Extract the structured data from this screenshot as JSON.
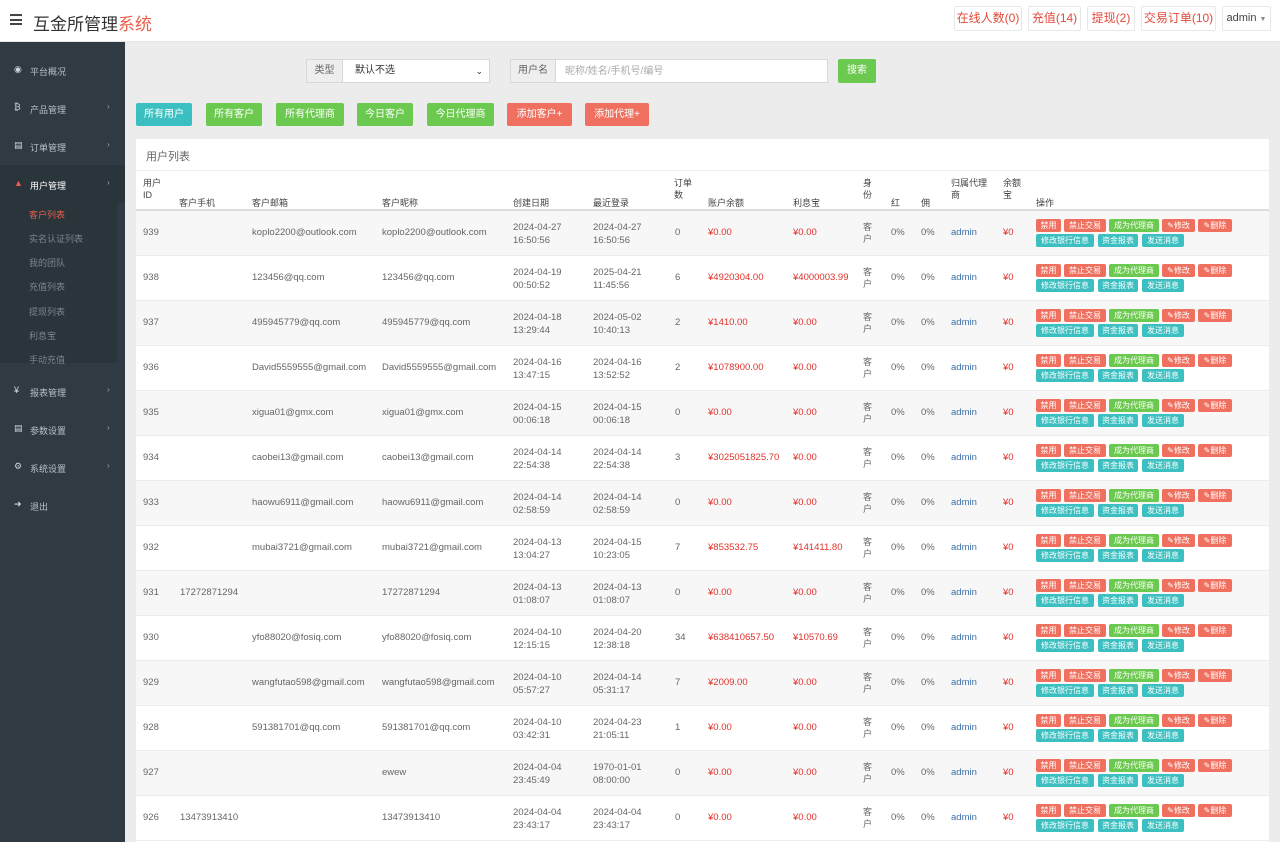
{
  "header": {
    "brand_main": "互金所管理",
    "brand_hl": "系统",
    "buttons": [
      "在线人数(0)",
      "充值(14)",
      "提现(2)",
      "交易订单(10)"
    ],
    "admin": "admin"
  },
  "sidebar": {
    "items": [
      {
        "label": "平台概况",
        "icon": "dashboard-icon",
        "glyph": "◉"
      },
      {
        "label": "产品管理",
        "icon": "bitcoin-icon",
        "glyph": "₿"
      },
      {
        "label": "订单管理",
        "icon": "copy-icon",
        "glyph": "▤"
      },
      {
        "label": "用户管理",
        "icon": "user-icon",
        "glyph": "▲"
      },
      {
        "label": "报表管理",
        "icon": "yen-icon",
        "glyph": "¥"
      },
      {
        "label": "参数设置",
        "icon": "copy-icon",
        "glyph": "▤"
      },
      {
        "label": "系统设置",
        "icon": "gears-icon",
        "glyph": "⚙"
      },
      {
        "label": "退出",
        "icon": "sign-out-icon",
        "glyph": "➜"
      }
    ],
    "sub_items": [
      "客户列表",
      "实名认证列表",
      "我的团队",
      "充值列表",
      "提现列表",
      "利息宝",
      "手动充值"
    ]
  },
  "filter": {
    "type_label": "类型",
    "type_value": "默认不选",
    "user_label": "用户名",
    "placeholder": "昵称/姓名/手机号/编号",
    "search": "搜索"
  },
  "quick_buttons": [
    "所有用户",
    "所有客户",
    "所有代理商",
    "今日客户",
    "今日代理商",
    "添加客户+",
    "添加代理+"
  ],
  "panel": {
    "title": "用户列表",
    "headers": [
      "用户ID",
      "客户手机",
      "客户邮箱",
      "客户昵称",
      "创建日期",
      "最近登录",
      "订单数",
      "账户余额",
      "利息宝",
      "身份",
      "红利",
      "佣金",
      "归属代理商",
      "余额宝",
      "操作"
    ],
    "action_labels": [
      "禁用",
      "禁止交易",
      "成为代理商",
      "✎修改",
      "✎删除",
      "修改银行信息",
      "资金报表",
      "发送消息"
    ]
  },
  "rows": [
    {
      "id": "939",
      "phone": "",
      "email": "koplo2200@outlook.com",
      "nick": "koplo2200@outlook.com",
      "created": [
        "2024-04-27",
        "16:50:56"
      ],
      "login": [
        "2024-04-27",
        "16:50:56"
      ],
      "orders": "0",
      "balance": "¥0.00",
      "interest": "¥0.00",
      "role": "客户",
      "bonus": "0%",
      "commission": "0%",
      "agent": "admin",
      "yuebao": "¥0"
    },
    {
      "id": "938",
      "phone": "",
      "email": "123456@qq.com",
      "nick": "123456@qq.com",
      "created": [
        "2024-04-19",
        "00:50:52"
      ],
      "login": [
        "2025-04-21",
        "11:45:56"
      ],
      "orders": "6",
      "balance": "¥4920304.00",
      "interest": "¥4000003.99",
      "role": "客户",
      "bonus": "0%",
      "commission": "0%",
      "agent": "admin",
      "yuebao": "¥0"
    },
    {
      "id": "937",
      "phone": "",
      "email": "495945779@qq.com",
      "nick": "495945779@qq.com",
      "created": [
        "2024-04-18",
        "13:29:44"
      ],
      "login": [
        "2024-05-02",
        "10:40:13"
      ],
      "orders": "2",
      "balance": "¥1410.00",
      "interest": "¥0.00",
      "role": "客户",
      "bonus": "0%",
      "commission": "0%",
      "agent": "admin",
      "yuebao": "¥0"
    },
    {
      "id": "936",
      "phone": "",
      "email": "David5559555@gmail.com",
      "nick": "David5559555@gmail.com",
      "created": [
        "2024-04-16",
        "13:47:15"
      ],
      "login": [
        "2024-04-16",
        "13:52:52"
      ],
      "orders": "2",
      "balance": "¥1078900.00",
      "interest": "¥0.00",
      "role": "客户",
      "bonus": "0%",
      "commission": "0%",
      "agent": "admin",
      "yuebao": "¥0"
    },
    {
      "id": "935",
      "phone": "",
      "email": "xigua01@gmx.com",
      "nick": "xigua01@gmx.com",
      "created": [
        "2024-04-15",
        "00:06:18"
      ],
      "login": [
        "2024-04-15",
        "00:06:18"
      ],
      "orders": "0",
      "balance": "¥0.00",
      "interest": "¥0.00",
      "role": "客户",
      "bonus": "0%",
      "commission": "0%",
      "agent": "admin",
      "yuebao": "¥0"
    },
    {
      "id": "934",
      "phone": "",
      "email": "caobei13@gmail.com",
      "nick": "caobei13@gmail.com",
      "created": [
        "2024-04-14",
        "22:54:38"
      ],
      "login": [
        "2024-04-14",
        "22:54:38"
      ],
      "orders": "3",
      "balance": "¥3025051825.70",
      "interest": "¥0.00",
      "role": "客户",
      "bonus": "0%",
      "commission": "0%",
      "agent": "admin",
      "yuebao": "¥0"
    },
    {
      "id": "933",
      "phone": "",
      "email": "haowu6911@gmail.com",
      "nick": "haowu6911@gmail.com",
      "created": [
        "2024-04-14",
        "02:58:59"
      ],
      "login": [
        "2024-04-14",
        "02:58:59"
      ],
      "orders": "0",
      "balance": "¥0.00",
      "interest": "¥0.00",
      "role": "客户",
      "bonus": "0%",
      "commission": "0%",
      "agent": "admin",
      "yuebao": "¥0"
    },
    {
      "id": "932",
      "phone": "",
      "email": "mubai3721@gmail.com",
      "nick": "mubai3721@gmail.com",
      "created": [
        "2024-04-13",
        "13:04:27"
      ],
      "login": [
        "2024-04-15",
        "10:23:05"
      ],
      "orders": "7",
      "balance": "¥853532.75",
      "interest": "¥141411.80",
      "role": "客户",
      "bonus": "0%",
      "commission": "0%",
      "agent": "admin",
      "yuebao": "¥0"
    },
    {
      "id": "931",
      "phone": "17272871294",
      "email": "",
      "nick": "17272871294",
      "created": [
        "2024-04-13",
        "01:08:07"
      ],
      "login": [
        "2024-04-13",
        "01:08:07"
      ],
      "orders": "0",
      "balance": "¥0.00",
      "interest": "¥0.00",
      "role": "客户",
      "bonus": "0%",
      "commission": "0%",
      "agent": "admin",
      "yuebao": "¥0"
    },
    {
      "id": "930",
      "phone": "",
      "email": "yfo88020@fosiq.com",
      "nick": "yfo88020@fosiq.com",
      "created": [
        "2024-04-10",
        "12:15:15"
      ],
      "login": [
        "2024-04-20",
        "12:38:18"
      ],
      "orders": "34",
      "balance": "¥638410657.50",
      "interest": "¥10570.69",
      "role": "客户",
      "bonus": "0%",
      "commission": "0%",
      "agent": "admin",
      "yuebao": "¥0"
    },
    {
      "id": "929",
      "phone": "",
      "email": "wangfutao598@gmail.com",
      "nick": "wangfutao598@gmail.com",
      "created": [
        "2024-04-10",
        "05:57:27"
      ],
      "login": [
        "2024-04-14",
        "05:31:17"
      ],
      "orders": "7",
      "balance": "¥2009.00",
      "interest": "¥0.00",
      "role": "客户",
      "bonus": "0%",
      "commission": "0%",
      "agent": "admin",
      "yuebao": "¥0"
    },
    {
      "id": "928",
      "phone": "",
      "email": "591381701@qq.com",
      "nick": "591381701@qq.com",
      "created": [
        "2024-04-10",
        "03:42:31"
      ],
      "login": [
        "2024-04-23",
        "21:05:11"
      ],
      "orders": "1",
      "balance": "¥0.00",
      "interest": "¥0.00",
      "role": "客户",
      "bonus": "0%",
      "commission": "0%",
      "agent": "admin",
      "yuebao": "¥0"
    },
    {
      "id": "927",
      "phone": "",
      "email": "",
      "nick": "ewew",
      "created": [
        "2024-04-04",
        "23:45:49"
      ],
      "login": [
        "1970-01-01",
        "08:00:00"
      ],
      "orders": "0",
      "balance": "¥0.00",
      "interest": "¥0.00",
      "role": "客户",
      "bonus": "0%",
      "commission": "0%",
      "agent": "admin",
      "yuebao": "¥0"
    },
    {
      "id": "926",
      "phone": "13473913410",
      "email": "",
      "nick": "13473913410",
      "created": [
        "2024-04-04",
        "23:43:17"
      ],
      "login": [
        "2024-04-04",
        "23:43:17"
      ],
      "orders": "0",
      "balance": "¥0.00",
      "interest": "¥0.00",
      "role": "客户",
      "bonus": "0%",
      "commission": "0%",
      "agent": "admin",
      "yuebao": "¥0"
    }
  ]
}
